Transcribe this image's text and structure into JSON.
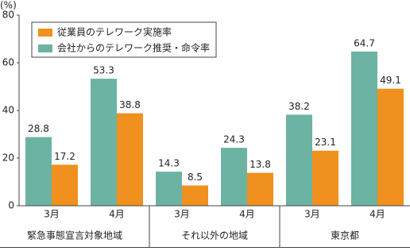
{
  "chart_data": {
    "type": "bar",
    "y_unit": "(%)",
    "categories": [
      "3月",
      "4月",
      "3月",
      "4月",
      "3月",
      "4月"
    ],
    "groups": [
      "緊急事態宣言対象地域",
      "それ以外の地域",
      "東京都"
    ],
    "series": [
      {
        "name": "従業員のテレワーク実施率",
        "color": "#f0901e",
        "values": [
          17.2,
          38.8,
          8.5,
          13.8,
          23.1,
          49.1
        ]
      },
      {
        "name": "会社からのテレワーク推奨・命令率",
        "color": "#6db3a3",
        "values": [
          28.8,
          53.3,
          14.3,
          24.3,
          38.2,
          64.7
        ]
      }
    ],
    "ylim": [
      0,
      80
    ],
    "yticks": [
      0,
      20,
      40,
      60,
      80
    ],
    "legend": "upper-left"
  }
}
